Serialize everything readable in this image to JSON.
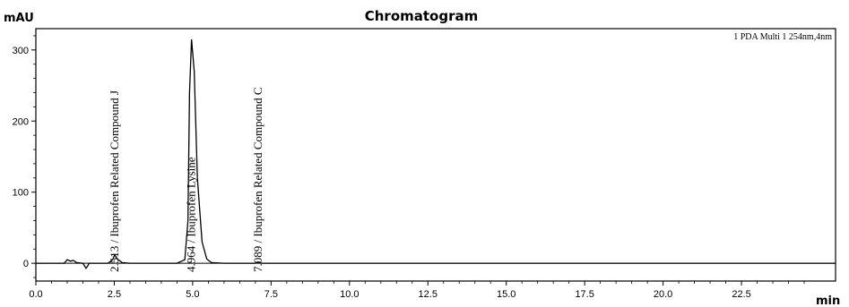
{
  "chart_data": {
    "type": "line",
    "title": "Chromatogram",
    "ylabel": "mAU",
    "xlabel": "min",
    "legend": "1 PDA Multi 1 254nm,4nm",
    "xlim": [
      0,
      25.5
    ],
    "ylim": [
      -25,
      330
    ],
    "x_ticks": [
      0.0,
      2.5,
      5.0,
      7.5,
      10.0,
      12.5,
      15.0,
      17.5,
      20.0,
      22.5
    ],
    "x_tick_labels": [
      "0.0",
      "2.5",
      "5.0",
      "7.5",
      "10.0",
      "12.5",
      "15.0",
      "17.5",
      "20.0",
      "22.5"
    ],
    "y_ticks": [
      0,
      100,
      200,
      300
    ],
    "y_tick_labels": [
      "0",
      "100",
      "200",
      "300"
    ],
    "grid": false,
    "series": [
      {
        "x": [
          0.0,
          0.9,
          1.0,
          1.1,
          1.2,
          1.3,
          1.5,
          1.6,
          1.65,
          1.7,
          1.8,
          2.3,
          2.45,
          2.513,
          2.6,
          2.75,
          3.0,
          4.5,
          4.75,
          4.85,
          4.9,
          4.964,
          5.05,
          5.15,
          5.3,
          5.45,
          5.6,
          6.0,
          7.0,
          7.089,
          7.2,
          8.0,
          25.5
        ],
        "y": [
          0,
          0,
          5,
          3,
          4,
          1,
          0,
          -7,
          -4,
          0,
          0,
          0,
          5,
          12,
          6,
          1,
          0,
          0,
          5,
          60,
          240,
          315,
          270,
          120,
          30,
          6,
          1,
          0,
          0,
          2,
          0,
          0,
          0
        ]
      }
    ],
    "annotations": [
      {
        "x": 2.513,
        "text": "2.513 / Ibuprofen Related Compound J"
      },
      {
        "x": 4.964,
        "text": "4.964 / Ibuprofen Lysine"
      },
      {
        "x": 7.089,
        "text": "7.089 / Ibuprofen Related Compound C"
      }
    ]
  }
}
